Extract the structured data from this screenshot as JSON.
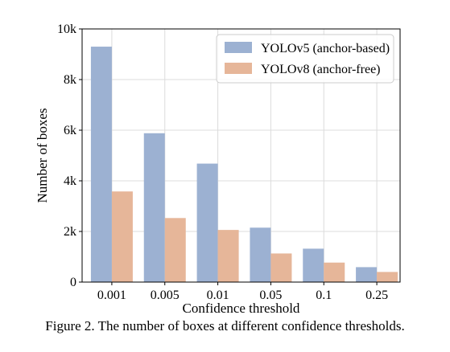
{
  "chart_data": {
    "type": "bar",
    "categories": [
      "0.001",
      "0.005",
      "0.01",
      "0.05",
      "0.1",
      "0.25"
    ],
    "series": [
      {
        "name": "YOLOv5 (anchor-based)",
        "values": [
          9300,
          5880,
          4680,
          2150,
          1320,
          590
        ],
        "color": "#9cb1d2"
      },
      {
        "name": "YOLOv8 (anchor-free)",
        "values": [
          3580,
          2530,
          2060,
          1130,
          770,
          400
        ],
        "color": "#e6b699"
      }
    ],
    "xlabel": "Confidence threshold",
    "ylabel": "Number of boxes",
    "ylim": [
      0,
      10000
    ],
    "yticks": [
      0,
      2000,
      4000,
      6000,
      8000,
      10000
    ],
    "ytick_labels": [
      "0",
      "2k",
      "4k",
      "6k",
      "8k",
      "10k"
    ],
    "grid": true,
    "legend_position": "top-right"
  },
  "caption": "Figure 2. The number of boxes at different confidence thresholds."
}
